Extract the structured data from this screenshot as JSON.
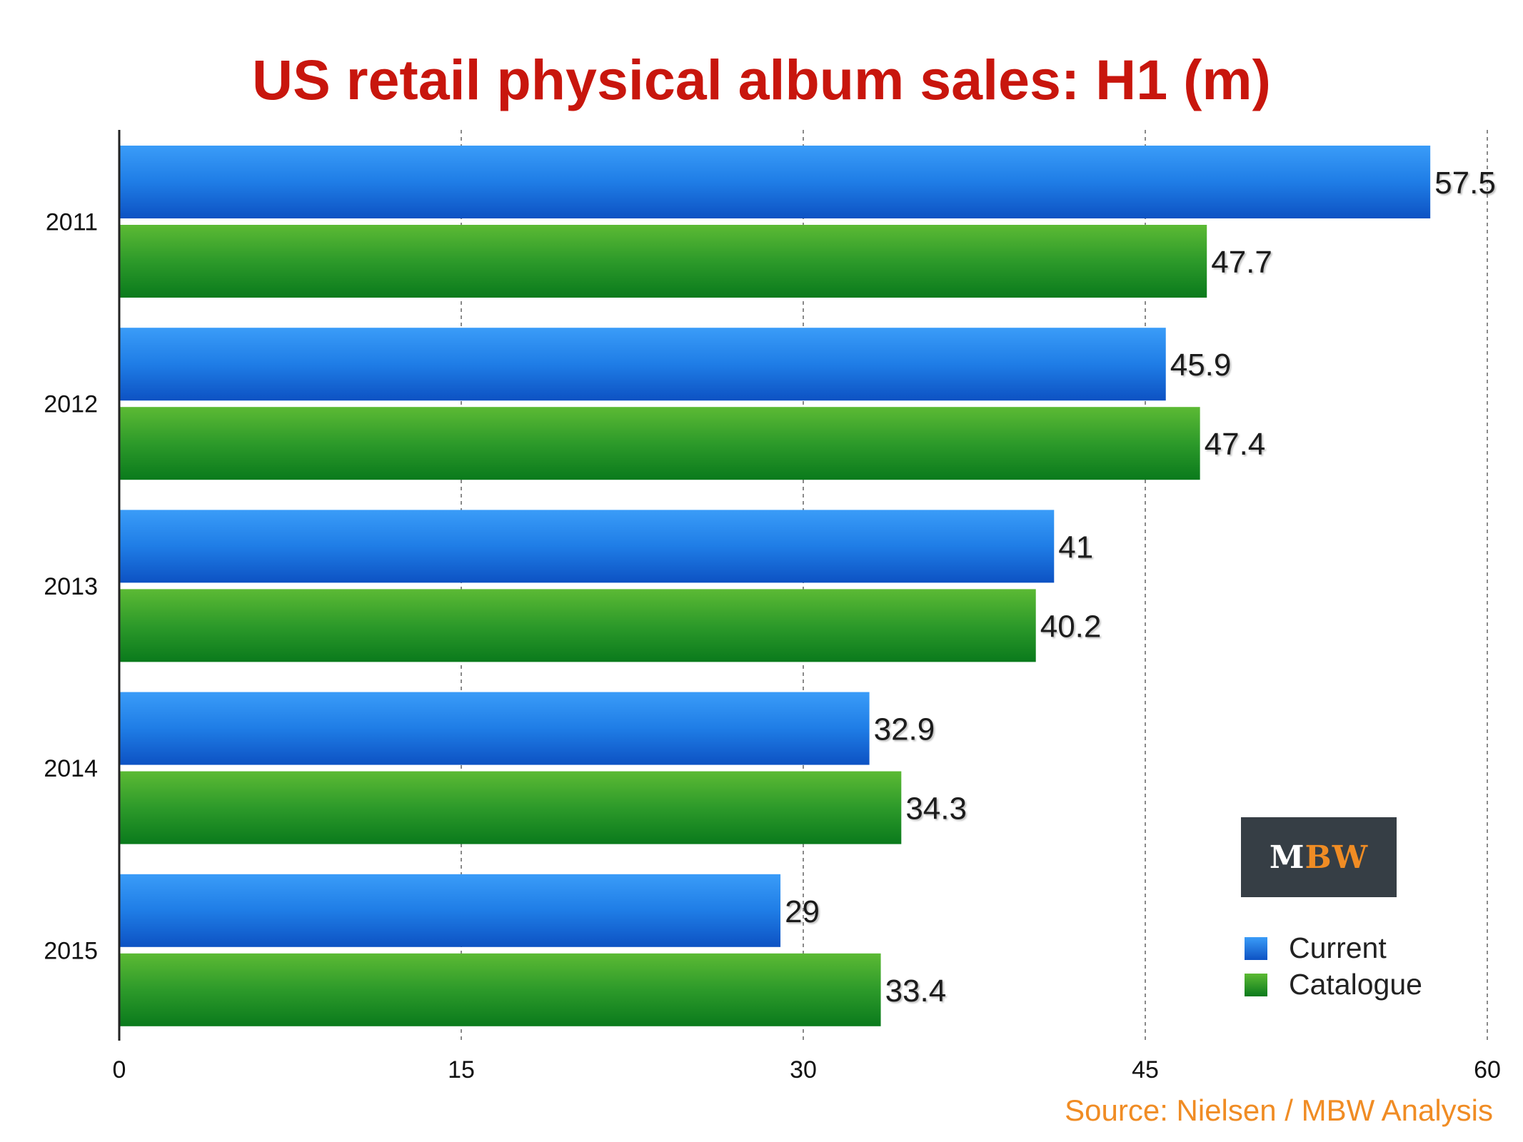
{
  "chart_data": {
    "type": "bar",
    "orientation": "horizontal",
    "title": "US retail physical album sales: H1 (m)",
    "categories": [
      "2011",
      "2012",
      "2013",
      "2014",
      "2015"
    ],
    "series": [
      {
        "name": "Current",
        "color": "#1f7de6",
        "values": [
          57.5,
          45.9,
          41,
          32.9,
          29
        ],
        "labels": [
          "57.5",
          "45.9",
          "41",
          "32.9",
          "29"
        ]
      },
      {
        "name": "Catalogue",
        "color": "#2a9a2a",
        "values": [
          47.7,
          47.4,
          40.2,
          34.3,
          33.4
        ],
        "labels": [
          "47.7",
          "47.4",
          "40.2",
          "34.3",
          "33.4"
        ]
      }
    ],
    "xlim": [
      0,
      60
    ],
    "xticks": [
      "0",
      "15",
      "30",
      "45",
      "60"
    ],
    "grid": "vertical dashed",
    "legend_position": "bottom-right",
    "data_labels": true
  },
  "source": "Source: Nielsen / MBW Analysis",
  "logo": {
    "m": "M",
    "bw": "BW"
  },
  "colors": {
    "title": "#c8160d",
    "source": "#f08c24",
    "current": "#1f7de6",
    "catalogue": "#2a9a2a",
    "logo_bg": "#363e45"
  }
}
